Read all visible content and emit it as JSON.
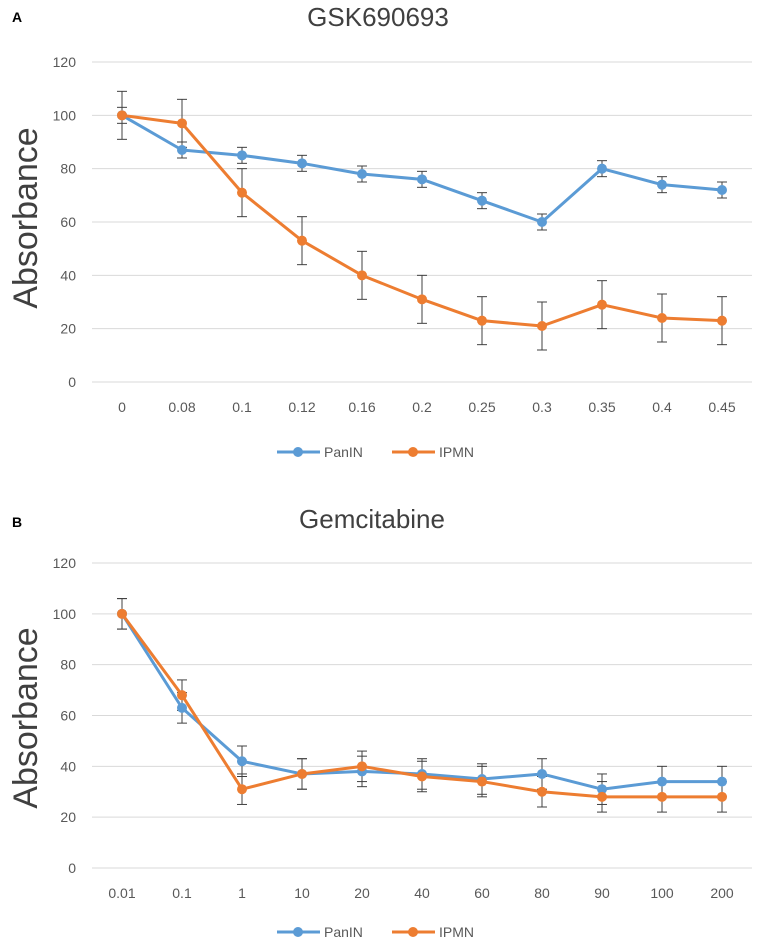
{
  "chart_data": [
    {
      "panel": "A",
      "type": "line",
      "title": "GSK690693",
      "xlabel": "",
      "ylabel": "Absorbance",
      "categories": [
        "0",
        "0.08",
        "0.1",
        "0.12",
        "0.16",
        "0.2",
        "0.25",
        "0.3",
        "0.35",
        "0.4",
        "0.45"
      ],
      "ylim": [
        0,
        120
      ],
      "yticks": [
        "0",
        "20",
        "40",
        "60",
        "80",
        "100",
        "120"
      ],
      "grid": true,
      "legend": "bottom-center",
      "series": [
        {
          "name": "PanIN",
          "color": "#5B9BD5",
          "values": [
            100,
            87,
            85,
            82,
            78,
            76,
            68,
            60,
            80,
            74,
            72
          ],
          "errors": [
            3,
            3,
            3,
            3,
            3,
            3,
            3,
            3,
            3,
            3,
            3
          ]
        },
        {
          "name": "IPMN",
          "color": "#ED7D31",
          "values": [
            100,
            97,
            71,
            53,
            40,
            31,
            23,
            21,
            29,
            24,
            23
          ],
          "errors": [
            9,
            9,
            9,
            9,
            9,
            9,
            9,
            9,
            9,
            9,
            9
          ]
        }
      ]
    },
    {
      "panel": "B",
      "type": "line",
      "title": "Gemcitabine",
      "xlabel": "",
      "ylabel": "Absorbance",
      "categories": [
        "0.01",
        "0.1",
        "1",
        "10",
        "20",
        "40",
        "60",
        "80",
        "90",
        "100",
        "200"
      ],
      "ylim": [
        0,
        120
      ],
      "yticks": [
        "0",
        "20",
        "40",
        "60",
        "80",
        "100",
        "120"
      ],
      "grid": true,
      "legend": "bottom-center",
      "series": [
        {
          "name": "PanIN",
          "color": "#5B9BD5",
          "values": [
            100,
            63,
            42,
            37,
            38,
            37,
            35,
            37,
            31,
            34,
            34
          ],
          "errors": [
            6,
            6,
            6,
            6,
            6,
            6,
            6,
            6,
            6,
            6,
            6
          ]
        },
        {
          "name": "IPMN",
          "color": "#ED7D31",
          "values": [
            100,
            68,
            31,
            37,
            40,
            36,
            34,
            30,
            28,
            28,
            28
          ],
          "errors": [
            6,
            6,
            6,
            6,
            6,
            6,
            6,
            6,
            6,
            6,
            6
          ]
        }
      ]
    }
  ]
}
